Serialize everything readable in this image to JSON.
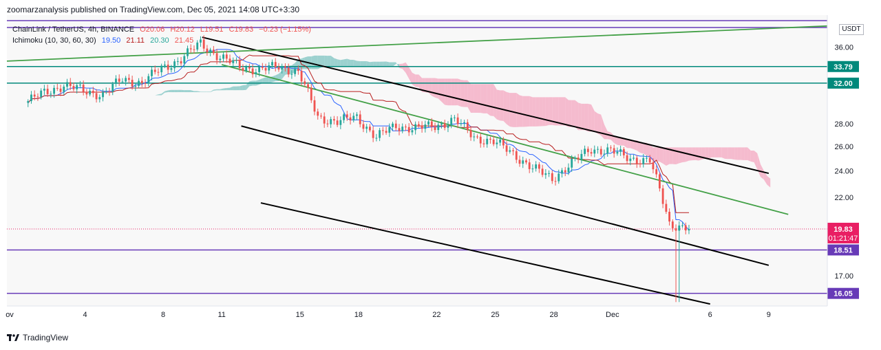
{
  "header": {
    "publisher_line": "zoomarzanalysis published on TradingView.com, Dec 05, 2021 14:08 UTC+3:30"
  },
  "legend": {
    "symbol": "ChainLink / TetherUS, 4h, BINANCE",
    "open": "O20.06",
    "high": "H20.12",
    "low": "L19.51",
    "close": "C19.83",
    "change": "−0.23 (−1.15%)",
    "indicator": "Ichimoku (10, 30, 60, 30)",
    "ich_values": [
      "19.50",
      "21.11",
      "20.30",
      "21.45"
    ]
  },
  "currency_label": "USDT",
  "footer": {
    "brand": "TradingView"
  },
  "colors": {
    "up": "#26a69a",
    "down": "#ef5350",
    "tenkan": "#2962ff",
    "kijun": "#b71c1c",
    "cloud_green": "#7ec4c1",
    "cloud_pink": "#f4a7c0",
    "trend_green": "#43a047",
    "teal_level": "#00897b",
    "purple_level": "#673ab7",
    "price_label": "#e91e63"
  },
  "chart_data": {
    "type": "candlestick",
    "x_axis": {
      "tick_labels": [
        "ov",
        "4",
        "8",
        "11",
        "15",
        "18",
        "22",
        "25",
        "28",
        "Dec",
        "6",
        "9"
      ],
      "tick_days": [
        31.6,
        4,
        8,
        11,
        15,
        18,
        22,
        25,
        28,
        1,
        6,
        9
      ],
      "tick_months": [
        "Oct",
        "Nov",
        "Nov",
        "Nov",
        "Nov",
        "Nov",
        "Nov",
        "Nov",
        "Nov",
        "Dec",
        "Dec",
        "Dec"
      ]
    },
    "y_axis": {
      "scale": "log",
      "tick_labels": [
        "36.00",
        "28.00",
        "26.00",
        "24.00",
        "22.00",
        "17.00"
      ]
    },
    "x_range_dates": [
      "2021-10-31",
      "2021-12-12"
    ],
    "y_range": [
      15.4,
      40.0
    ],
    "close_series": [
      {
        "date": "2021-11-01",
        "value": 30.0
      },
      {
        "date": "2021-11-02",
        "value": 31.0
      },
      {
        "date": "2021-11-03",
        "value": 31.8
      },
      {
        "date": "2021-11-04",
        "value": 31.2
      },
      {
        "date": "2021-11-05",
        "value": 30.8
      },
      {
        "date": "2021-11-06",
        "value": 32.4
      },
      {
        "date": "2021-11-07",
        "value": 32.0
      },
      {
        "date": "2021-11-08",
        "value": 33.6
      },
      {
        "date": "2021-11-09",
        "value": 34.6
      },
      {
        "date": "2021-11-10",
        "value": 36.5
      },
      {
        "date": "2021-11-11",
        "value": 34.8
      },
      {
        "date": "2021-11-12",
        "value": 33.8
      },
      {
        "date": "2021-11-13",
        "value": 33.4
      },
      {
        "date": "2021-11-14",
        "value": 33.8
      },
      {
        "date": "2021-11-15",
        "value": 33.2
      },
      {
        "date": "2021-11-16",
        "value": 28.6
      },
      {
        "date": "2021-11-17",
        "value": 28.2
      },
      {
        "date": "2021-11-18",
        "value": 28.6
      },
      {
        "date": "2021-11-19",
        "value": 26.8
      },
      {
        "date": "2021-11-20",
        "value": 27.8
      },
      {
        "date": "2021-11-21",
        "value": 27.6
      },
      {
        "date": "2021-11-22",
        "value": 27.8
      },
      {
        "date": "2021-11-23",
        "value": 28.4
      },
      {
        "date": "2021-11-24",
        "value": 26.8
      },
      {
        "date": "2021-11-25",
        "value": 26.4
      },
      {
        "date": "2021-11-26",
        "value": 25.4
      },
      {
        "date": "2021-11-27",
        "value": 24.2
      },
      {
        "date": "2021-11-28",
        "value": 23.4
      },
      {
        "date": "2021-11-29",
        "value": 24.6
      },
      {
        "date": "2021-11-30",
        "value": 25.8
      },
      {
        "date": "2021-12-01",
        "value": 25.6
      },
      {
        "date": "2021-12-02",
        "value": 25.0
      },
      {
        "date": "2021-12-03",
        "value": 24.8
      },
      {
        "date": "2021-12-04",
        "value": 20.2
      },
      {
        "date": "2021-12-05",
        "value": 19.83
      }
    ],
    "horizontal_levels": [
      {
        "value": 33.79,
        "label": "33.79",
        "color": "teal"
      },
      {
        "value": 32.0,
        "label": "32.00",
        "color": "teal"
      },
      {
        "value": 18.51,
        "label": "18.51",
        "color": "purple"
      },
      {
        "value": 16.05,
        "label": "16.05",
        "color": "purple"
      }
    ],
    "last_price": {
      "value": 19.83,
      "label": "19.83",
      "countdown": "01:21:47"
    },
    "trendlines": [
      {
        "color": "black",
        "from": {
          "date": "2021-11-10",
          "value": 37.2
        },
        "to": {
          "date": "2021-12-09",
          "value": 23.8
        }
      },
      {
        "color": "black",
        "from": {
          "date": "2021-11-12",
          "value": 27.8
        },
        "to": {
          "date": "2021-12-09",
          "value": 17.6
        }
      },
      {
        "color": "black",
        "from": {
          "date": "2021-11-13",
          "value": 21.6
        },
        "to": {
          "date": "2021-12-06",
          "value": 15.5
        }
      },
      {
        "color": "green",
        "from": {
          "date": "2021-10-31",
          "value": 34.4
        },
        "to": {
          "date": "2021-12-12",
          "value": 38.6
        }
      },
      {
        "color": "green",
        "from": {
          "date": "2021-11-11",
          "value": 34.0
        },
        "to": {
          "date": "2021-12-10",
          "value": 20.8
        }
      }
    ]
  }
}
